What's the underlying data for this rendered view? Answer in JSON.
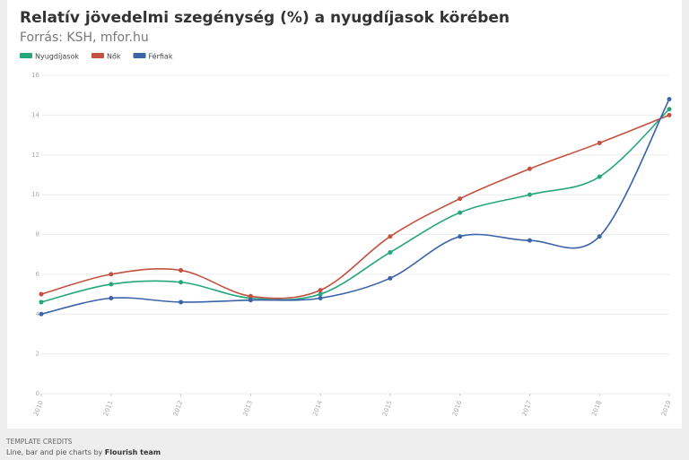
{
  "chart_data": {
    "type": "line",
    "title": "Relatív jövedelmi szegénység (%) a nyugdíjasok körében",
    "subtitle": "Forrás: KSH, mfor.hu",
    "x": [
      2010,
      2011,
      2012,
      2013,
      2014,
      2015,
      2016,
      2017,
      2018,
      2019
    ],
    "xlim": [
      2010,
      2019
    ],
    "xticks": [
      2010,
      2011,
      2012,
      2013,
      2014,
      2015,
      2016,
      2017,
      2018,
      2019
    ],
    "ylim": [
      0,
      16
    ],
    "yticks": [
      0,
      2,
      4,
      6,
      8,
      10,
      12,
      14,
      16
    ],
    "grid": true,
    "series": [
      {
        "name": "Nyugdíjasok",
        "color": "#25a67b",
        "values": [
          4.6,
          5.5,
          5.6,
          4.8,
          5.0,
          7.1,
          9.1,
          10.0,
          10.9,
          14.3
        ]
      },
      {
        "name": "Nők",
        "color": "#c4503f",
        "values": [
          5.0,
          6.0,
          6.2,
          4.9,
          5.2,
          7.9,
          9.8,
          11.3,
          12.6,
          14.0
        ]
      },
      {
        "name": "Férfiak",
        "color": "#3a63a8",
        "values": [
          4.0,
          4.8,
          4.6,
          4.7,
          4.8,
          5.8,
          7.9,
          7.7,
          7.9,
          14.8
        ]
      }
    ]
  },
  "footer": {
    "credits": "TEMPLATE CREDITS",
    "text": "Line, bar and pie charts by",
    "link": "Flourish team"
  }
}
